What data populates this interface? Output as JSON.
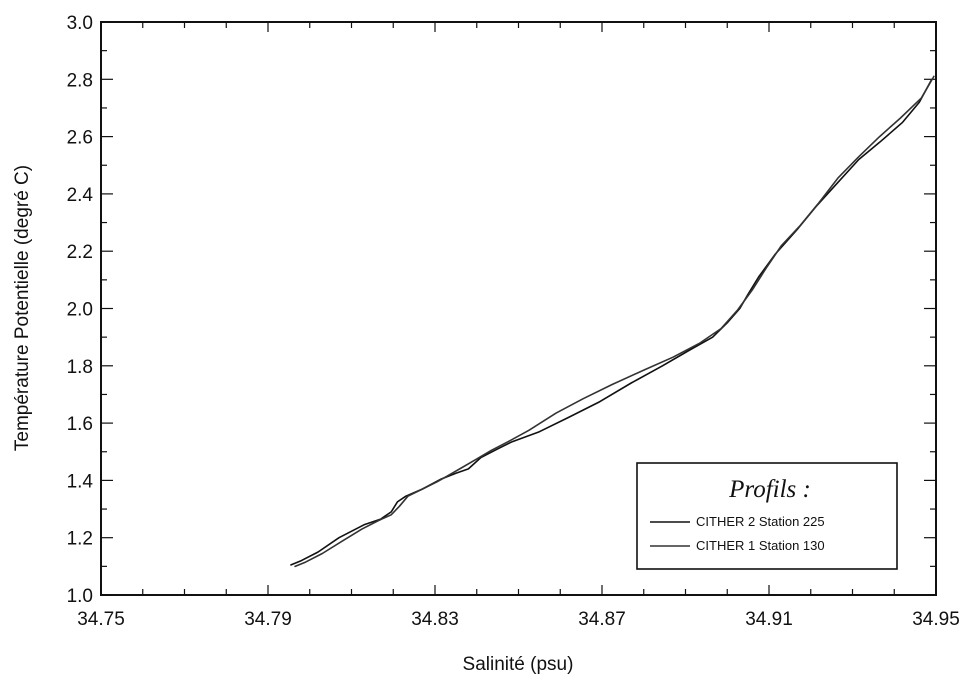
{
  "chart_data": {
    "type": "line",
    "xlabel": "Salinité (psu)",
    "ylabel": "Température Potentielle (degré C)",
    "xlim": [
      34.75,
      34.95
    ],
    "ylim": [
      1.0,
      3.0
    ],
    "x_ticks": [
      "34.75",
      "34.79",
      "34.83",
      "34.87",
      "34.91",
      "34.95"
    ],
    "y_ticks": [
      "1.0",
      "1.2",
      "1.4",
      "1.6",
      "1.8",
      "2.0",
      "2.2",
      "2.4",
      "2.6",
      "2.8",
      "3.0"
    ],
    "grid": false,
    "legend_title": "Profils :",
    "legend_position": "bottom-right",
    "series": [
      {
        "name": "CITHER 2 Station 225",
        "color": "#111111",
        "x": [
          34.7955,
          34.798,
          34.802,
          34.807,
          34.813,
          34.817,
          34.8195,
          34.821,
          34.823,
          34.827,
          34.8315,
          34.835,
          34.838,
          34.841,
          34.845,
          34.8485,
          34.855,
          34.862,
          34.8695,
          34.877,
          34.8845,
          34.891,
          34.8965,
          34.9,
          34.903,
          34.905,
          34.9075,
          34.9115,
          34.917,
          34.9215,
          34.9265,
          34.9315,
          34.9365,
          34.942,
          34.946,
          34.949
        ],
        "y": [
          1.105,
          1.12,
          1.15,
          1.2,
          1.245,
          1.265,
          1.29,
          1.325,
          1.345,
          1.37,
          1.405,
          1.425,
          1.44,
          1.48,
          1.51,
          1.535,
          1.57,
          1.62,
          1.675,
          1.74,
          1.8,
          1.855,
          1.9,
          1.95,
          2.0,
          2.05,
          2.11,
          2.19,
          2.28,
          2.36,
          2.44,
          2.52,
          2.58,
          2.65,
          2.72,
          2.8
        ]
      },
      {
        "name": "CITHER 1 Station 130",
        "color": "#333333",
        "x": [
          34.7965,
          34.799,
          34.803,
          34.808,
          34.8125,
          34.8165,
          34.8195,
          34.8215,
          34.8235,
          34.827,
          34.8305,
          34.8335,
          34.8365,
          34.84,
          34.8435,
          34.8475,
          34.8525,
          34.859,
          34.8655,
          34.8725,
          34.88,
          34.887,
          34.8935,
          34.8985,
          34.9025,
          34.906,
          34.9095,
          34.913,
          34.9175,
          34.922,
          34.9265,
          34.9315,
          34.9365,
          34.9415,
          34.9465,
          34.9495
        ],
        "y": [
          1.1,
          1.115,
          1.145,
          1.19,
          1.23,
          1.26,
          1.28,
          1.31,
          1.345,
          1.37,
          1.395,
          1.42,
          1.445,
          1.475,
          1.505,
          1.535,
          1.575,
          1.635,
          1.685,
          1.735,
          1.785,
          1.83,
          1.88,
          1.93,
          1.995,
          2.065,
          2.145,
          2.22,
          2.29,
          2.37,
          2.455,
          2.53,
          2.6,
          2.665,
          2.735,
          2.81
        ]
      }
    ]
  }
}
